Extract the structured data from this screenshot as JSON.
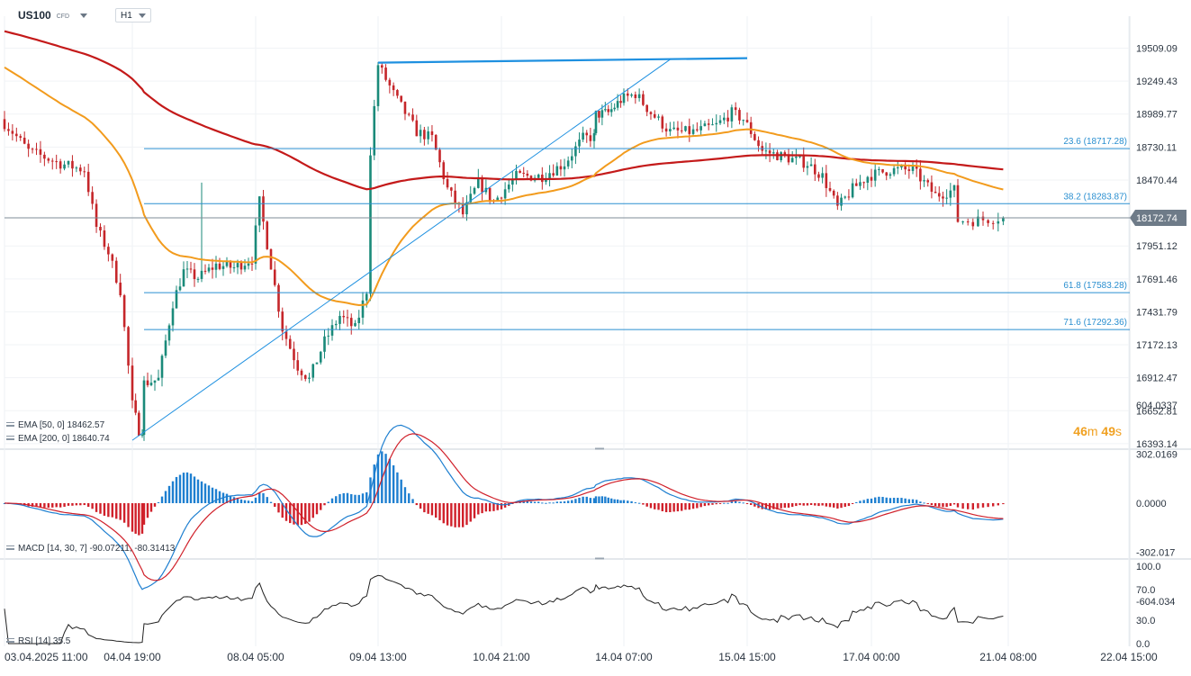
{
  "header": {
    "symbol": "US100",
    "symbol_suffix": "CFD",
    "timeframe": "H1"
  },
  "countdown": {
    "minutes": "46",
    "min_unit": "m",
    "seconds": "49",
    "sec_unit": "s"
  },
  "legends": {
    "ema50": "EMA [50, 0] 18462.57",
    "ema200": "EMA [200, 0] 18640.74",
    "macd": "MACD [14, 30, 7] -90.07211, -80.31413",
    "rsi": "RSI [14] 35.5"
  },
  "colors": {
    "up": "#1a8a7a",
    "down": "#c5262a",
    "ema50": "#f29b1d",
    "ema200": "#c41a1a",
    "fib": "#2a8fd0",
    "trend": "#1e90e0",
    "macd_line": "#1e7fd0",
    "signal_line": "#d0202a",
    "rsi_line": "#222222",
    "price_tag": "#6e7b88"
  },
  "chart_data": {
    "type": "candlestick",
    "instrument": "US100",
    "timeframe": "H1",
    "price_axis": {
      "ticks": [
        19509.09,
        19249.43,
        18989.77,
        18730.11,
        18470.44,
        17951.12,
        17691.46,
        17431.79,
        17172.13,
        16912.47,
        16652.81,
        16393.14
      ],
      "ylim": [
        16393.14,
        19509.09
      ]
    },
    "time_axis": {
      "ticks": [
        "03.04.2025  11:00",
        "04.04  19:00",
        "08.04  05:00",
        "09.04  13:00",
        "10.04  21:00",
        "14.04  07:00",
        "15.04  15:00",
        "17.04  00:00",
        "21.04  08:00",
        "22.04  15:00"
      ]
    },
    "last_price": "18172.74",
    "fibonacci": [
      {
        "label": "23.6 (18717.28)",
        "price": 18717.28
      },
      {
        "label": "38.2 (18283.87)",
        "price": 18283.87
      },
      {
        "label": "61.8 (17583.28)",
        "price": 17583.28
      },
      {
        "label": "71.6 (17292.36)",
        "price": 17292.36
      }
    ],
    "trendlines": [
      {
        "from": [
          "04.04 19:00",
          16420
        ],
        "to": [
          "14.04 19:00",
          19420
        ]
      },
      {
        "from": [
          "09.04 13:00",
          19395
        ],
        "to": [
          "15.04 15:00",
          19430
        ]
      }
    ],
    "price_path": [
      [
        "03.04 11:00",
        18950
      ],
      [
        "03.04 14:00",
        18850
      ],
      [
        "03.04 18:00",
        18700
      ],
      [
        "04.04 02:00",
        18600
      ],
      [
        "04.04 08:00",
        18550
      ],
      [
        "04.04 11:00",
        18100
      ],
      [
        "04.04 14:00",
        17900
      ],
      [
        "04.04 17:00",
        17600
      ],
      [
        "04.04 20:00",
        16700
      ],
      [
        "04.04 22:00",
        16500
      ],
      [
        "07.04 03:00",
        16900
      ],
      [
        "07.04 07:00",
        17500
      ],
      [
        "07.04 10:00",
        17750
      ],
      [
        "07.04 14:00",
        17700
      ],
      [
        "07.04 19:00",
        17800
      ],
      [
        "08.04 00:00",
        17780
      ],
      [
        "08.04 05:00",
        17850
      ],
      [
        "08.04 07:00",
        18300
      ],
      [
        "08.04 10:00",
        17800
      ],
      [
        "08.04 13:00",
        17300
      ],
      [
        "08.04 17:00",
        17000
      ],
      [
        "08.04 20:00",
        16900
      ],
      [
        "09.04 00:00",
        17200
      ],
      [
        "09.04 04:00",
        17400
      ],
      [
        "09.04 08:00",
        17300
      ],
      [
        "09.04 11:00",
        17600
      ],
      [
        "09.04 12:00",
        18700
      ],
      [
        "09.04 14:00",
        19380
      ],
      [
        "09.04 18:00",
        19150
      ],
      [
        "10.04 00:00",
        18850
      ],
      [
        "10.04 04:00",
        18800
      ],
      [
        "10.04 08:00",
        18400
      ],
      [
        "10.04 12:00",
        18200
      ],
      [
        "10.04 16:00",
        18450
      ],
      [
        "10.04 20:00",
        18300
      ],
      [
        "11.04 02:00",
        18500
      ],
      [
        "11.04 09:00",
        18500
      ],
      [
        "11.04 15:00",
        18600
      ],
      [
        "11.04 20:00",
        18800
      ],
      [
        "14.04 03:00",
        19000
      ],
      [
        "14.04 07:00",
        19100
      ],
      [
        "14.04 11:00",
        19150
      ],
      [
        "14.04 15:00",
        19000
      ],
      [
        "14.04 20:00",
        18850
      ],
      [
        "15.04 02:00",
        18850
      ],
      [
        "15.04 08:00",
        18900
      ],
      [
        "15.04 12:00",
        19000
      ],
      [
        "15.04 15:00",
        18950
      ],
      [
        "15.04 20:00",
        18700
      ],
      [
        "16.04 02:00",
        18650
      ],
      [
        "16.04 08:00",
        18600
      ],
      [
        "16.04 12:00",
        18500
      ],
      [
        "16.04 16:00",
        18250
      ],
      [
        "16.04 20:00",
        18400
      ],
      [
        "17.04 00:00",
        18500
      ],
      [
        "17.04 06:00",
        18550
      ],
      [
        "17.04 12:00",
        18550
      ],
      [
        "17.04 18:00",
        18350
      ],
      [
        "18.04 00:00",
        18400
      ],
      [
        "18.04 08:00",
        18250
      ],
      [
        "18.04 16:00",
        18200
      ],
      [
        "21.04 02:00",
        18150
      ],
      [
        "21.04 07:00",
        18172.74
      ]
    ],
    "ema50": {
      "name": "EMA [50, 0]",
      "last": 18462.57
    },
    "ema200": {
      "name": "EMA [200, 0]",
      "last": 18640.74
    },
    "macd": {
      "params": "[14, 30, 7]",
      "macd": -90.07211,
      "signal": -80.31413,
      "ticks": [
        604.0337,
        302.0169,
        0.0,
        -302.017,
        -604.034
      ],
      "ylim": [
        -604.034,
        604.0337
      ]
    },
    "rsi": {
      "period": 14,
      "value": 35.5,
      "ticks": [
        100.0,
        70.0,
        30.0,
        0.0
      ],
      "ylim": [
        0,
        100
      ]
    }
  },
  "price_ticks_text": [
    "19509.09",
    "19249.43",
    "18989.77",
    "18730.11",
    "18470.44",
    "17951.12",
    "17691.46",
    "17431.79",
    "17172.13",
    "16912.47",
    "16652.81",
    "16393.14"
  ],
  "macd_ticks_text": [
    "604.0337",
    "302.0169",
    "0.0000",
    "-302.017",
    "-604.034"
  ],
  "rsi_ticks_text": [
    "100.0",
    "70.0",
    "30.0",
    "0.0"
  ]
}
